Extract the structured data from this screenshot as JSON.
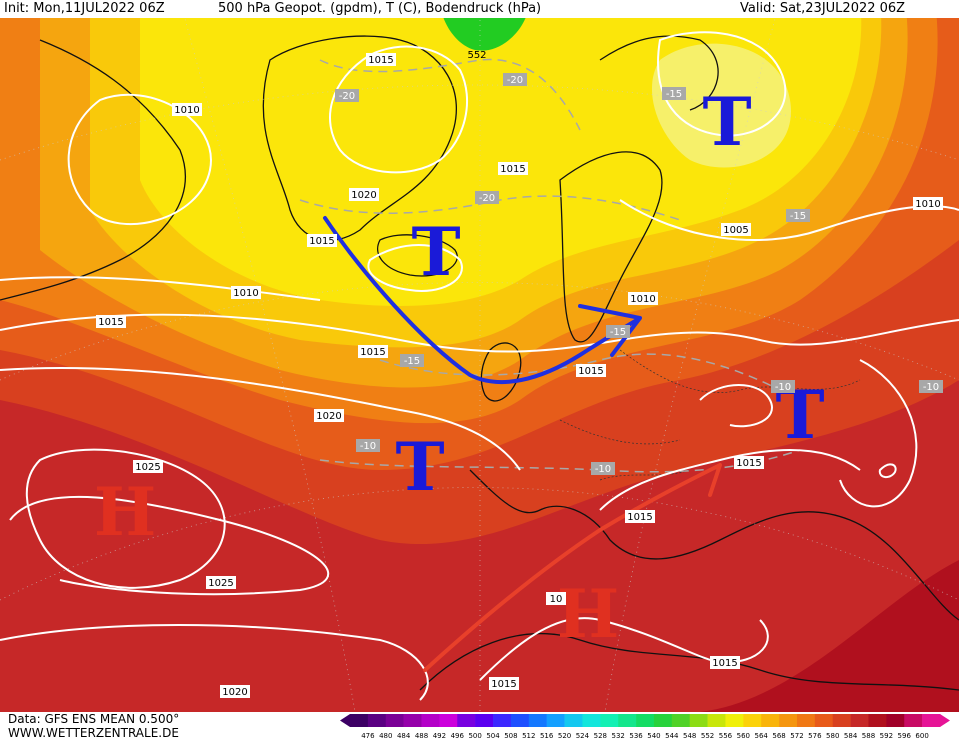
{
  "header": {
    "init": "Init: Mon,11JUL2022 06Z",
    "title": "500 hPa Geopot. (gpdm), T (C), Bodendruck (hPa)",
    "valid": "Valid: Sat,23JUL2022 06Z"
  },
  "footer": {
    "data_source": "Data: GFS ENS MEAN 0.500°",
    "website": "WWW.WETTERZENTRALE.DE"
  },
  "colors": {
    "deep_red": "#b0101e",
    "red": "#c62828",
    "red_orange": "#d8401f",
    "orange": "#e65c1a",
    "light_orange": "#f07f14",
    "amber": "#f5a50f",
    "yellow_orange": "#f9c90a",
    "yellow": "#fbe60a",
    "pale_yellow": "#f6f06a",
    "green": "#22cc22",
    "low_color": "#1a1ad8",
    "high_color": "#e03020",
    "front_blue": "#1f2fe0",
    "front_red": "#e8402a"
  },
  "pressure_systems": [
    {
      "type": "low",
      "letter": "T"
    },
    {
      "type": "low",
      "letter": "T"
    },
    {
      "type": "low",
      "letter": "T"
    },
    {
      "type": "low",
      "letter": "T"
    },
    {
      "type": "high",
      "letter": "H"
    },
    {
      "type": "high",
      "letter": "H"
    }
  ],
  "isobar_labels": [
    "1015",
    "1010",
    "1020",
    "1015",
    "1010",
    "1015",
    "1015",
    "1005",
    "1010",
    "1010",
    "1015",
    "1015",
    "1020",
    "1025",
    "1015",
    "1015",
    "1025",
    "1020",
    "10",
    "1015",
    "1015"
  ],
  "temperature_labels": [
    "-20",
    "-20",
    "-15",
    "-20",
    "-15",
    "-15",
    "-15",
    "-10",
    "-10",
    "-10",
    "-10"
  ],
  "geopotential_labels": [
    "552"
  ],
  "legend": {
    "ticks": [
      "476",
      "480",
      "484",
      "488",
      "492",
      "496",
      "500",
      "504",
      "508",
      "512",
      "516",
      "520",
      "524",
      "528",
      "532",
      "536",
      "540",
      "544",
      "548",
      "552",
      "556",
      "560",
      "564",
      "568",
      "572",
      "576",
      "580",
      "584",
      "588",
      "592",
      "596",
      "600"
    ],
    "colors": [
      "#3c0064",
      "#5a0082",
      "#7a0096",
      "#9600aa",
      "#b400c8",
      "#cc00dc",
      "#7800e0",
      "#5a00f0",
      "#3c28ff",
      "#1e50ff",
      "#1478ff",
      "#14a0ff",
      "#14c8f0",
      "#14e6dc",
      "#14f0b4",
      "#14e68c",
      "#14dc64",
      "#28d23c",
      "#50d228",
      "#8cdc14",
      "#c8e60a",
      "#f0f00a",
      "#fbd20a",
      "#f9b40a",
      "#f5960f",
      "#f07814",
      "#e85a1a",
      "#d8401f",
      "#c62828",
      "#b0101e",
      "#a00028",
      "#c80a64",
      "#e61496"
    ]
  }
}
